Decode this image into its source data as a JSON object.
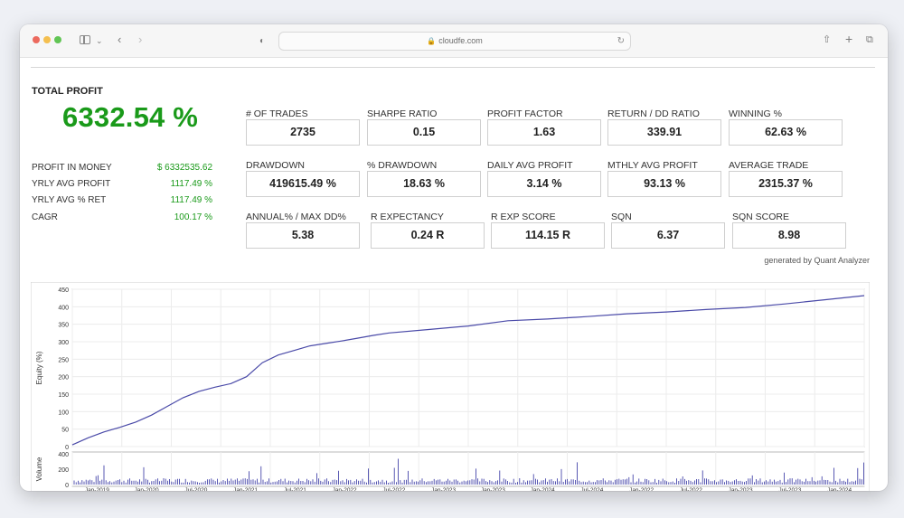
{
  "browser": {
    "url": "cloudfe.com"
  },
  "summary": {
    "total_profit_label": "TOTAL PROFIT",
    "total_profit_value": "6332.54 %",
    "rows": [
      {
        "label": "PROFIT IN MONEY",
        "value": "$ 6332535.62"
      },
      {
        "label": "YRLY AVG PROFIT",
        "value": "1117.49 %"
      },
      {
        "label": "YRLY AVG % RET",
        "value": "1117.49 %"
      },
      {
        "label": "CAGR",
        "value": "100.17 %"
      }
    ]
  },
  "metrics": [
    {
      "label": "# OF TRADES",
      "value": "2735"
    },
    {
      "label": "SHARPE RATIO",
      "value": "0.15"
    },
    {
      "label": "PROFIT FACTOR",
      "value": "1.63"
    },
    {
      "label": "RETURN / DD RATIO",
      "value": "339.91"
    },
    {
      "label": "WINNING %",
      "value": "62.63 %"
    },
    {
      "label": "DRAWDOWN",
      "value": "419615.49 %"
    },
    {
      "label": "% DRAWDOWN",
      "value": "18.63 %"
    },
    {
      "label": "DAILY AVG PROFIT",
      "value": "3.14 %"
    },
    {
      "label": "MTHLY AVG PROFIT",
      "value": "93.13 %"
    },
    {
      "label": "AVERAGE TRADE",
      "value": "2315.37 %"
    },
    {
      "label": "ANNUAL% / MAX DD%",
      "value": "5.38"
    },
    {
      "label": "R EXPECTANCY",
      "value": "0.24 R"
    },
    {
      "label": "R EXP SCORE",
      "value": "114.15 R"
    },
    {
      "label": "SQN",
      "value": "6.37"
    },
    {
      "label": "SQN SCORE",
      "value": "8.98"
    }
  ],
  "generated_by": "generated by Quant Analyzer",
  "chart_data": [
    {
      "type": "line",
      "ylabel": "Equity (%)",
      "ylim": [
        0,
        450
      ],
      "yticks": [
        0,
        50,
        100,
        150,
        200,
        250,
        300,
        350,
        400,
        450
      ],
      "grid": true,
      "color": "#4a4aa8",
      "x": [
        0,
        0.02,
        0.04,
        0.06,
        0.08,
        0.1,
        0.12,
        0.14,
        0.16,
        0.18,
        0.2,
        0.22,
        0.24,
        0.26,
        0.28,
        0.3,
        0.32,
        0.34,
        0.36,
        0.38,
        0.4,
        0.45,
        0.5,
        0.55,
        0.6,
        0.65,
        0.7,
        0.75,
        0.8,
        0.85,
        0.9,
        0.95,
        1.0
      ],
      "values": [
        5,
        25,
        42,
        55,
        70,
        90,
        115,
        140,
        158,
        170,
        180,
        200,
        240,
        262,
        275,
        288,
        295,
        302,
        310,
        318,
        325,
        335,
        345,
        360,
        365,
        372,
        380,
        385,
        392,
        398,
        408,
        420,
        432
      ]
    },
    {
      "type": "bar",
      "ylabel": "Volume",
      "ylim": [
        0,
        400
      ],
      "yticks": [
        0,
        200,
        400
      ],
      "color": "#3030a0",
      "xticks": [
        "Jan-2019",
        "Jan-2020",
        "Jul-2020",
        "Jan-2021",
        "Jul-2021",
        "Jan-2022",
        "Jul-2022",
        "Jan-2023",
        "Jan-2023",
        "Jan-2024",
        "Jul-2024",
        "Jan-2022",
        "Jul-2022",
        "Jan-2023",
        "Jul-2023",
        "Jan-2024"
      ]
    }
  ]
}
